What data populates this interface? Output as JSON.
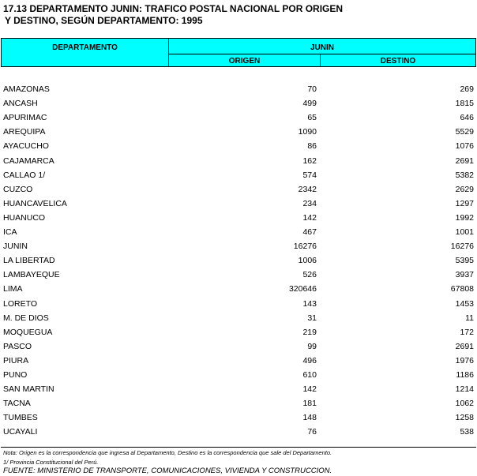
{
  "title": [
    "17.13 DEPARTAMENTO JUNIN: TRAFICO POSTAL NACIONAL POR ORIGEN",
    "Y DESTINO, SEGÚN DEPARTAMENTO: 1995"
  ],
  "table": {
    "header": {
      "department": "DEPARTAMENTO",
      "group": "JUNIN",
      "origin": "ORIGEN",
      "destination": "DESTINO"
    },
    "rows": [
      [
        "AMAZONAS",
        70,
        269
      ],
      [
        "ANCASH",
        499,
        1815
      ],
      [
        "APURIMAC",
        65,
        646
      ],
      [
        "AREQUIPA",
        1090,
        5529
      ],
      [
        "AYACUCHO",
        86,
        1076
      ],
      [
        "CAJAMARCA",
        162,
        2691
      ],
      [
        "CALLAO 1/",
        574,
        5382
      ],
      [
        "CUZCO",
        2342,
        2629
      ],
      [
        "HUANCAVELICA",
        234,
        1297
      ],
      [
        "HUANUCO",
        142,
        1992
      ],
      [
        "ICA",
        467,
        1001
      ],
      [
        "JUNIN",
        16276,
        16276
      ],
      [
        "LA LIBERTAD",
        1006,
        5395
      ],
      [
        "LAMBAYEQUE",
        526,
        3937
      ],
      [
        "LIMA",
        320646,
        67808
      ],
      [
        "LORETO",
        143,
        1453
      ],
      [
        "M. DE DIOS",
        31,
        11
      ],
      [
        "MOQUEGUA",
        219,
        172
      ],
      [
        "PASCO",
        99,
        2691
      ],
      [
        "PIURA",
        496,
        1976
      ],
      [
        "PUNO",
        610,
        1186
      ],
      [
        "SAN MARTIN",
        142,
        1214
      ],
      [
        "TACNA",
        181,
        1062
      ],
      [
        "TUMBES",
        148,
        1258
      ],
      [
        "UCAYALI",
        76,
        538
      ]
    ]
  },
  "notes": [
    "Nota: Origen es la correspondencia que ingresa al Departamento, Destino es la correspondencia que sale del Departamento.",
    "1/ Provincia Constitucional del Perú."
  ],
  "source": "FUENTE: MINISTERIO DE TRANSPORTE, COMUNICACIONES, VIVIENDA Y CONSTRUCCION."
}
